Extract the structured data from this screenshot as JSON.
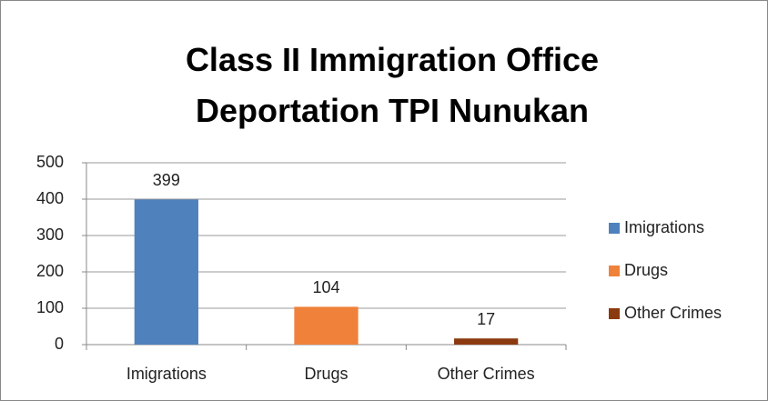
{
  "chart_data": {
    "type": "bar",
    "title": "Class II Immigration Office Deportation TPI Nunukan",
    "categories": [
      "Imigrations",
      "Drugs",
      "Other Crimes"
    ],
    "values": [
      399,
      104,
      17
    ],
    "colors": [
      "#4f81bd",
      "#f0813a",
      "#8b3a0f"
    ],
    "ylim": [
      0,
      500
    ],
    "yticks": [
      0,
      100,
      200,
      300,
      400,
      500
    ],
    "grid": true,
    "legend": "right",
    "data_labels": true
  }
}
